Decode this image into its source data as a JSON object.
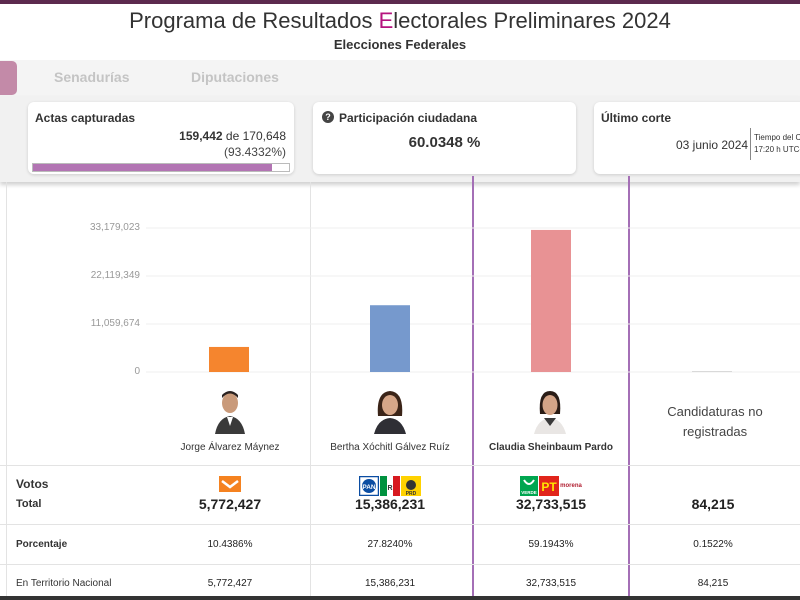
{
  "header": {
    "title_pre": "Programa de Resultados ",
    "title_accent": "E",
    "title_post": "lectorales Preliminares 2024",
    "subtitle": "Elecciones Federales"
  },
  "tabs": [
    {
      "label": "Senadurías"
    },
    {
      "label": "Diputaciones"
    }
  ],
  "actas": {
    "label": "Actas capturadas",
    "captured": "159,442",
    "connector": "de",
    "total": "170,648",
    "percent_text": "(93.4332%)",
    "percent": 93.4332
  },
  "participacion": {
    "icon": "question-icon",
    "label": "Participación ciudadana",
    "value": "60.0348 %"
  },
  "corte": {
    "label": "Último corte",
    "date": "03 junio 2024",
    "tz_line1": "Tiempo del C",
    "tz_line2": "17:20 h UTC-"
  },
  "colors": {
    "accent": "#b5137e",
    "highlight": "#a46fb6",
    "progress": "#b274b3",
    "tab_pill": "#c38aa8"
  },
  "chart_data": {
    "type": "bar",
    "categories": [
      "Jorge Álvarez Máynez",
      "Bertha Xóchitl Gálvez Ruíz",
      "Claudia Sheinbaum Pardo",
      "Candidaturas no registradas"
    ],
    "values": [
      5772427,
      15386231,
      32733515,
      84215
    ],
    "colors": [
      "#f5852e",
      "#7699cd",
      "#e89294",
      "#d9d9d9"
    ],
    "yticks": [
      "0",
      "11,059,674",
      "22,119,349",
      "33,179,023"
    ],
    "ytick_values": [
      0,
      11059674,
      22119349,
      33179023
    ],
    "ylim": [
      0,
      44238697
    ],
    "grid": true
  },
  "candidates": [
    {
      "name": "Jorge Álvarez Máynez"
    },
    {
      "name": "Bertha Xóchitl Gálvez Ruíz"
    },
    {
      "name": "Claudia Sheinbaum Pardo"
    }
  ],
  "no_registradas": {
    "line1": "Candidaturas no",
    "line2": "registradas"
  },
  "table": {
    "votos_label": "Votos",
    "total_label": "Total",
    "porcentaje_label": "Porcentaje",
    "territorio_label": "En Territorio Nacional",
    "rows": [
      {
        "total": "5,772,427",
        "porcentaje": "10.4386%",
        "territorio": "5,772,427",
        "parties": [
          "MC"
        ]
      },
      {
        "total": "15,386,231",
        "porcentaje": "27.8240%",
        "territorio": "15,386,231",
        "parties": [
          "PAN",
          "PRI",
          "PRD"
        ]
      },
      {
        "total": "32,733,515",
        "porcentaje": "59.1943%",
        "territorio": "32,733,515",
        "parties": [
          "VERDE",
          "PT",
          "morena"
        ]
      },
      {
        "total": "84,215",
        "porcentaje": "0.1522%",
        "territorio": "84,215",
        "parties": []
      }
    ]
  }
}
